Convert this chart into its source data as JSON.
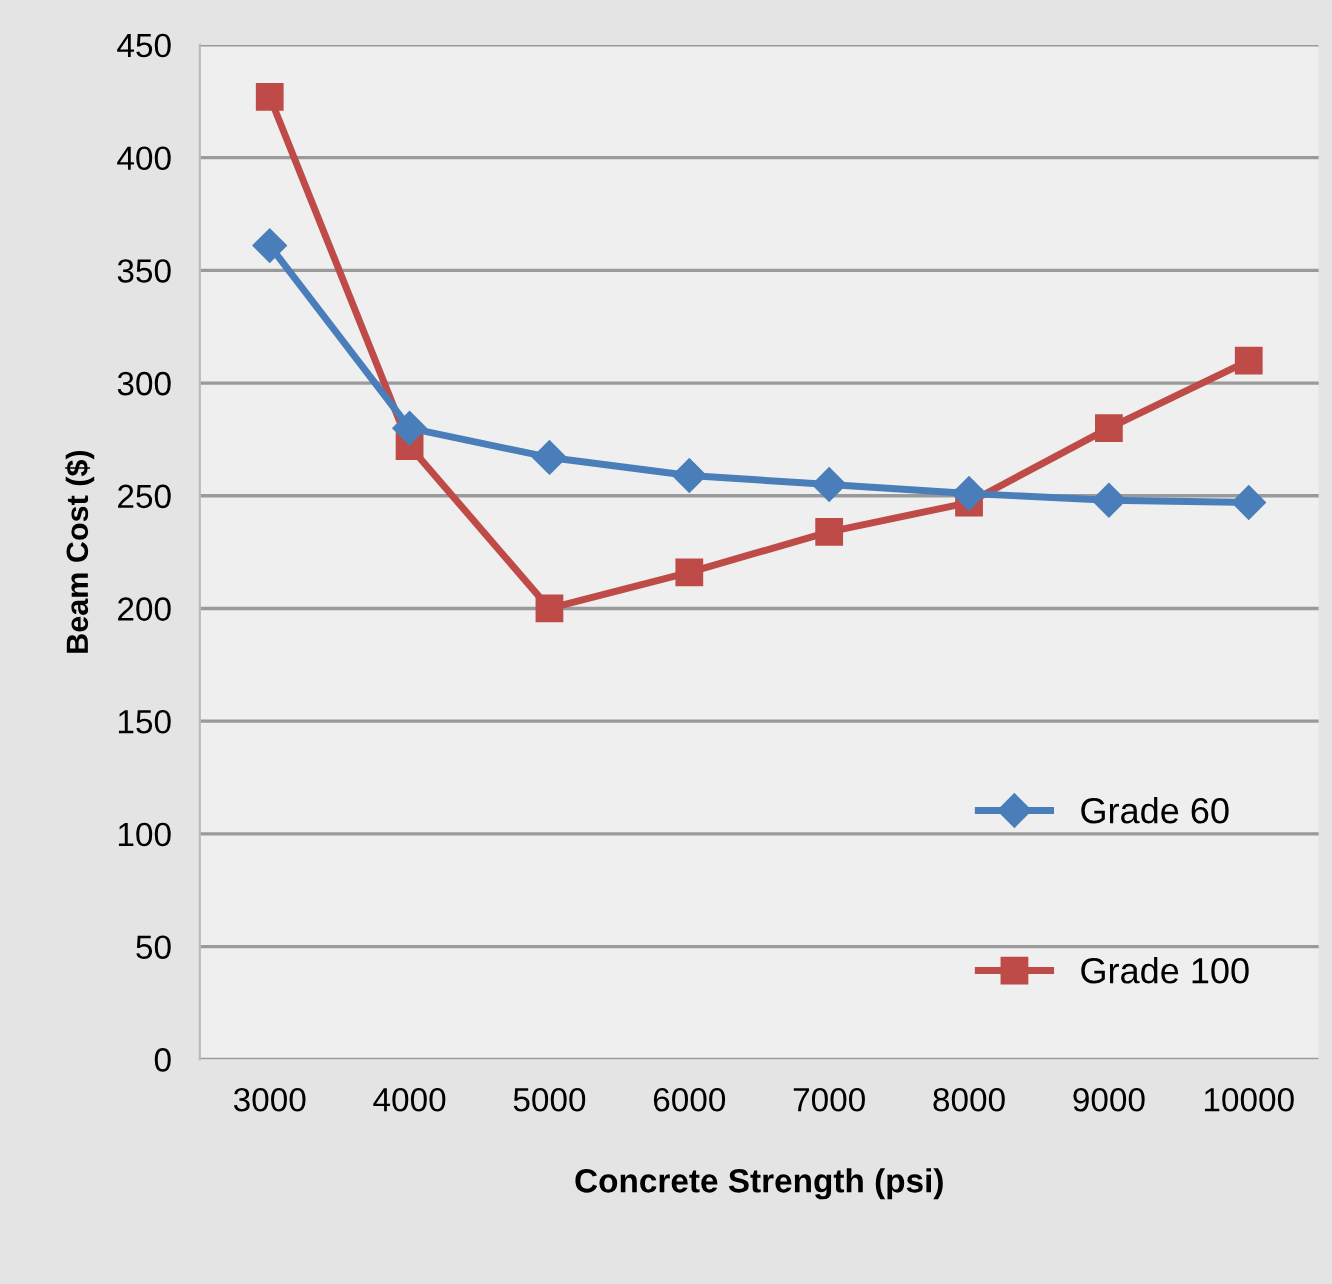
{
  "chart_data": {
    "type": "line",
    "xlabel": "Concrete Strength (psi)",
    "ylabel": "Beam Cost ($)",
    "categories": [
      "3000",
      "4000",
      "5000",
      "6000",
      "7000",
      "8000",
      "9000",
      "10000"
    ],
    "series": [
      {
        "name": "Grade 60",
        "color": "#4a7ebb",
        "marker": "diamond",
        "values": [
          361,
          280,
          267,
          259,
          255,
          251,
          248,
          247
        ]
      },
      {
        "name": "Grade 100",
        "color": "#be4b48",
        "marker": "square",
        "values": [
          427,
          272,
          200,
          216,
          234,
          247,
          280,
          310
        ]
      }
    ],
    "ylim": [
      0,
      450
    ],
    "yticks": [
      0,
      50,
      100,
      150,
      200,
      250,
      300,
      350,
      400,
      450
    ],
    "grid": "y",
    "legend": "bottom right"
  }
}
